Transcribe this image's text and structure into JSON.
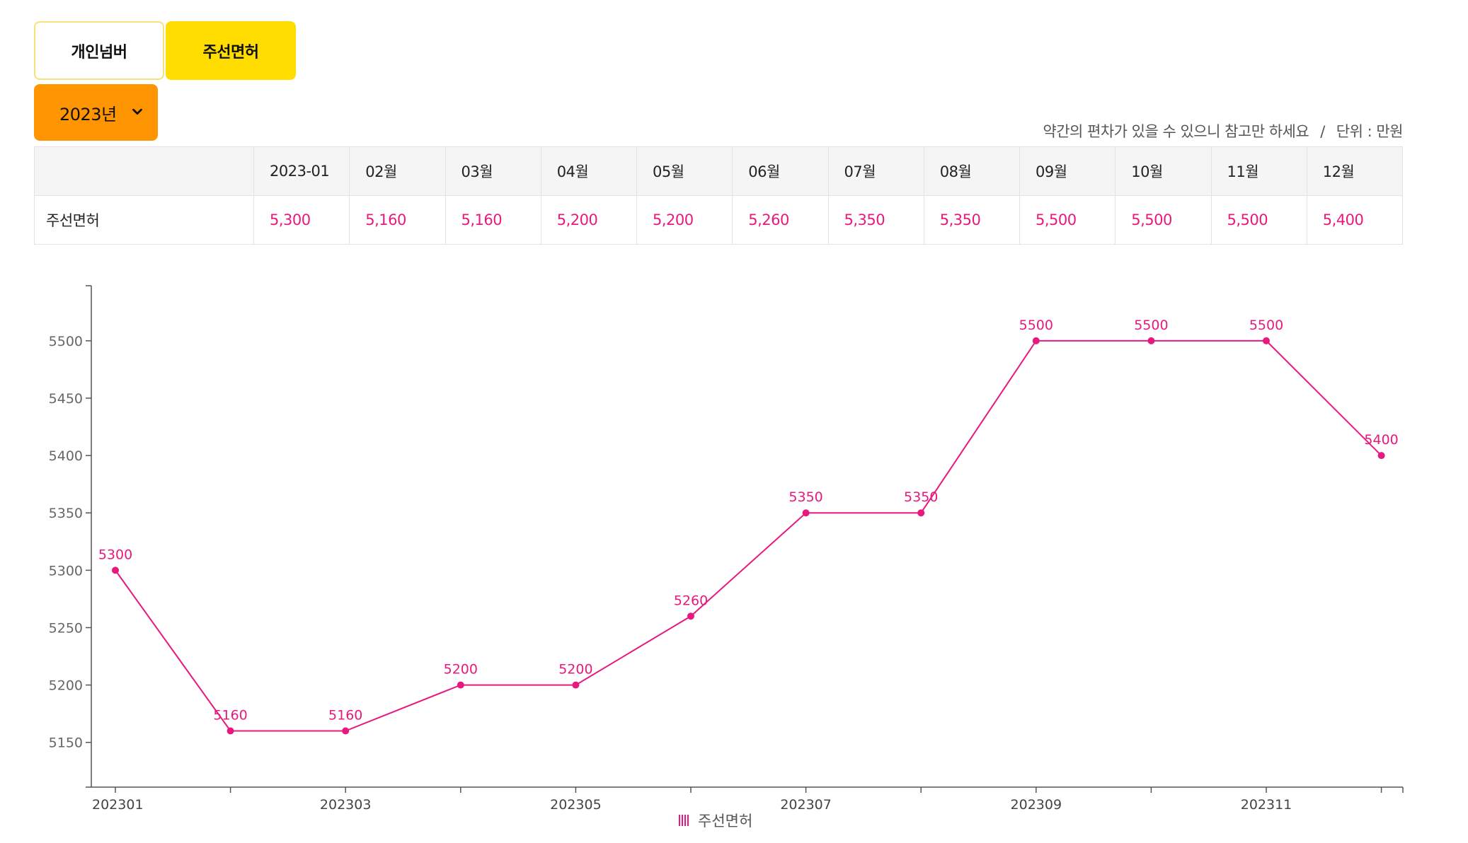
{
  "tabs": [
    {
      "label": "개인넘버",
      "active": false
    },
    {
      "label": "주선면허",
      "active": true
    }
  ],
  "year_select": {
    "value": "2023년"
  },
  "notice": {
    "text": "약간의 편차가 있을 수 있으니 참고만 하세요",
    "separator": "/",
    "unit": "단위 : 만원"
  },
  "table": {
    "columns": [
      "2023-01",
      "02월",
      "03월",
      "04월",
      "05월",
      "06월",
      "07월",
      "08월",
      "09월",
      "10월",
      "11월",
      "12월"
    ],
    "row": {
      "label": "주선면허",
      "values": [
        "5,300",
        "5,160",
        "5,160",
        "5,200",
        "5,200",
        "5,260",
        "5,350",
        "5,350",
        "5,500",
        "5,500",
        "5,500",
        "5,400"
      ]
    }
  },
  "colors": {
    "accent": "#e8197e",
    "tab_active": "#ffdd00",
    "select": "#ff9500"
  },
  "chart_data": {
    "type": "line",
    "x": [
      "202301",
      "202302",
      "202303",
      "202304",
      "202305",
      "202306",
      "202307",
      "202308",
      "202309",
      "202310",
      "202311",
      "202312"
    ],
    "x_tick_labels": [
      "202301",
      "202303",
      "202305",
      "202307",
      "202309",
      "202311"
    ],
    "series": [
      {
        "name": "주선면허",
        "values": [
          5300,
          5160,
          5160,
          5200,
          5200,
          5260,
          5350,
          5350,
          5500,
          5500,
          5500,
          5400
        ]
      }
    ],
    "y_ticks": [
      5150,
      5200,
      5250,
      5300,
      5350,
      5400,
      5450,
      5500
    ],
    "ylim": [
      5111,
      5548
    ],
    "grid": false,
    "legend": "bottom-center"
  }
}
